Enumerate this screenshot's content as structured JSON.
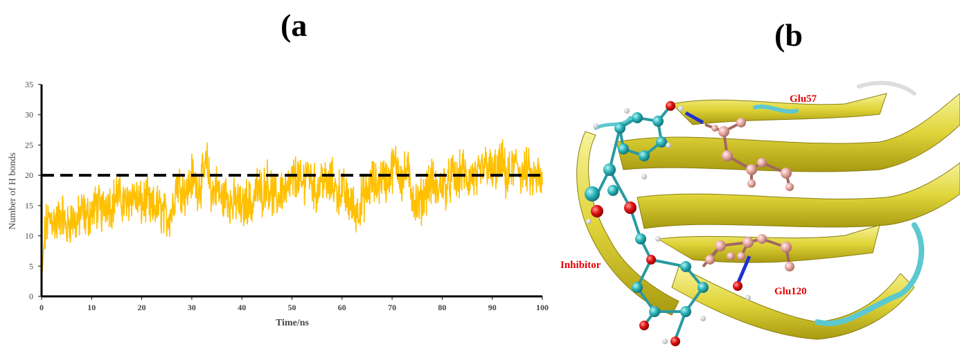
{
  "panels": {
    "a_label": "(a",
    "b_label": "(b"
  },
  "chart_data": {
    "type": "line",
    "title": "",
    "xlabel": "Time/ns",
    "ylabel": "Number of H bonds",
    "xlim": [
      0,
      100
    ],
    "ylim": [
      0,
      35
    ],
    "x_ticks": [
      0,
      10,
      20,
      30,
      40,
      50,
      60,
      70,
      80,
      90,
      100
    ],
    "y_ticks": [
      0,
      5,
      10,
      15,
      20,
      25,
      30,
      35
    ],
    "grid": false,
    "legend": "none",
    "reference_line": {
      "y": 20,
      "style": "dashed",
      "color": "#000000"
    },
    "series_color": "#FFC000",
    "series": [
      {
        "x": [
          0,
          0.5,
          1,
          2,
          3,
          4,
          5,
          6,
          7,
          8,
          9,
          10,
          11,
          12,
          13,
          14,
          15,
          16,
          17,
          18,
          19,
          20,
          21,
          22,
          23,
          24,
          25,
          26,
          27,
          28,
          29,
          30,
          31,
          32,
          33,
          34,
          35,
          36,
          37,
          38,
          39,
          40,
          41,
          42,
          43,
          44,
          45,
          46,
          47,
          48,
          49,
          50,
          51,
          52,
          53,
          54,
          55,
          56,
          57,
          58,
          59,
          60,
          61,
          62,
          63,
          64,
          65,
          66,
          67,
          68,
          69,
          70,
          71,
          72,
          73,
          74,
          75,
          76,
          77,
          78,
          79,
          80,
          81,
          82,
          83,
          84,
          85,
          86,
          87,
          88,
          89,
          90,
          91,
          92,
          93,
          94,
          95,
          96,
          97,
          98,
          99,
          100
        ],
        "y": [
          2,
          9,
          12,
          13,
          12,
          14,
          11,
          13,
          12,
          14,
          13,
          14,
          15,
          14,
          16,
          15,
          17,
          16,
          15,
          17,
          16,
          15,
          16,
          14,
          15,
          14,
          13,
          14,
          19,
          18,
          17,
          20,
          18,
          19,
          22,
          17,
          18,
          16,
          17,
          15,
          16,
          14,
          16,
          15,
          18,
          17,
          19,
          17,
          16,
          18,
          17,
          19,
          20,
          18,
          21,
          19,
          17,
          20,
          18,
          19,
          17,
          18,
          16,
          15,
          14,
          16,
          17,
          19,
          18,
          20,
          19,
          21,
          22,
          19,
          21,
          17,
          15,
          16,
          18,
          19,
          17,
          19,
          18,
          20,
          19,
          21,
          19,
          20,
          19,
          21,
          22,
          20,
          21,
          22,
          19,
          21,
          22,
          20,
          21,
          19,
          20,
          18
        ]
      }
    ],
    "noise_amplitude": 3.0
  },
  "protein": {
    "labels": {
      "glu57": "Glu57",
      "glu120": "Glu120",
      "inhibitor": "Inhibitor"
    }
  }
}
